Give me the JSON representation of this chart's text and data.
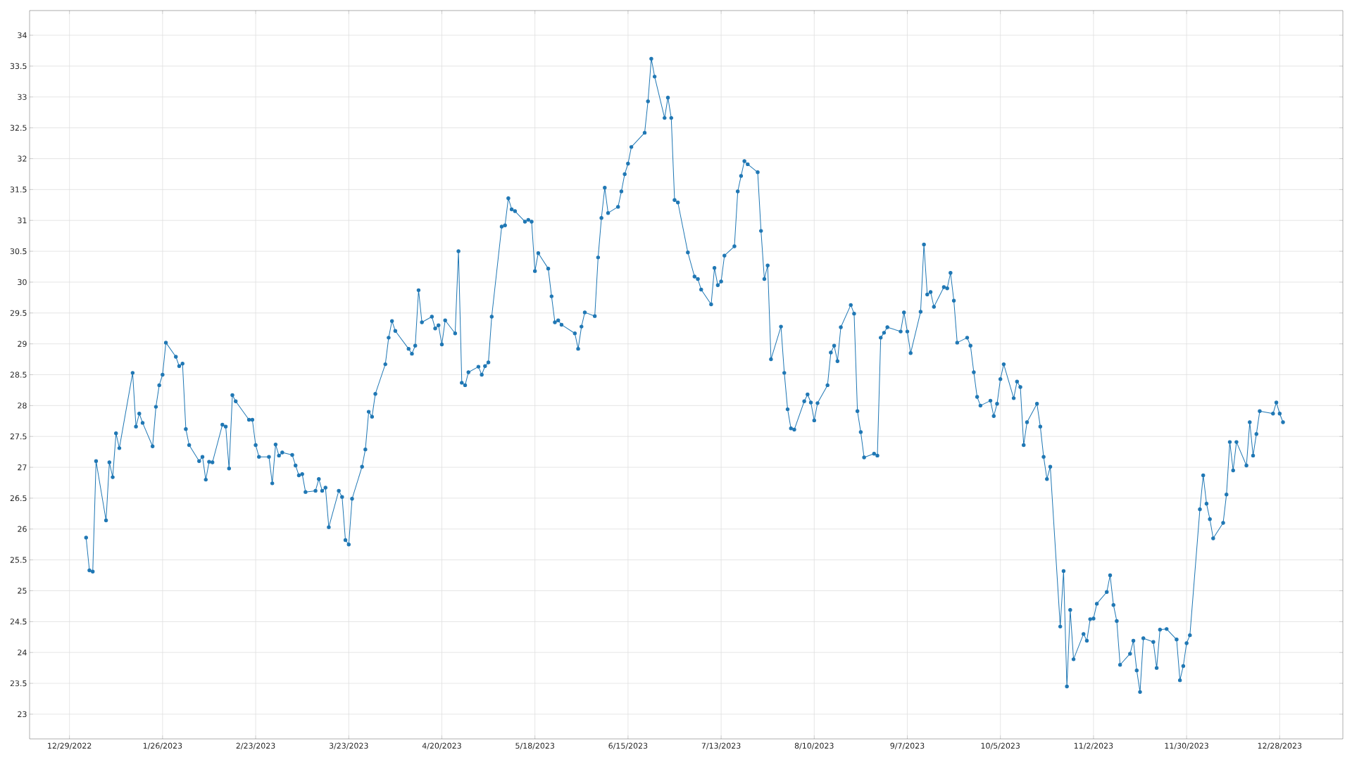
{
  "chart_data": {
    "type": "line",
    "grid": true,
    "marker": "circle",
    "line_style": "solid",
    "xlim": [
      "2022-12-17",
      "2024-01-16"
    ],
    "ylim": [
      22.6,
      34.4
    ],
    "xticks": [
      {
        "value": "2022-12-29",
        "label": "12/29/2022"
      },
      {
        "value": "2023-01-26",
        "label": "1/26/2023"
      },
      {
        "value": "2023-02-23",
        "label": "2/23/2023"
      },
      {
        "value": "2023-03-23",
        "label": "3/23/2023"
      },
      {
        "value": "2023-04-20",
        "label": "4/20/2023"
      },
      {
        "value": "2023-05-18",
        "label": "5/18/2023"
      },
      {
        "value": "2023-06-15",
        "label": "6/15/2023"
      },
      {
        "value": "2023-07-13",
        "label": "7/13/2023"
      },
      {
        "value": "2023-08-10",
        "label": "8/10/2023"
      },
      {
        "value": "2023-09-07",
        "label": "9/7/2023"
      },
      {
        "value": "2023-10-05",
        "label": "10/5/2023"
      },
      {
        "value": "2023-11-02",
        "label": "11/2/2023"
      },
      {
        "value": "2023-11-30",
        "label": "11/30/2023"
      },
      {
        "value": "2023-12-28",
        "label": "12/28/2023"
      }
    ],
    "yticks": [
      23,
      23.5,
      24,
      24.5,
      25,
      25.5,
      26,
      26.5,
      27,
      27.5,
      28,
      28.5,
      29,
      29.5,
      30,
      30.5,
      31,
      31.5,
      32,
      32.5,
      33,
      33.5,
      34
    ],
    "series": [
      {
        "color": "#1f77b4",
        "x": [
          "2023-01-03",
          "2023-01-04",
          "2023-01-05",
          "2023-01-06",
          "2023-01-09",
          "2023-01-10",
          "2023-01-11",
          "2023-01-12",
          "2023-01-13",
          "2023-01-17",
          "2023-01-18",
          "2023-01-19",
          "2023-01-20",
          "2023-01-23",
          "2023-01-24",
          "2023-01-25",
          "2023-01-26",
          "2023-01-27",
          "2023-01-30",
          "2023-01-31",
          "2023-02-01",
          "2023-02-02",
          "2023-02-03",
          "2023-02-06",
          "2023-02-07",
          "2023-02-08",
          "2023-02-09",
          "2023-02-10",
          "2023-02-13",
          "2023-02-14",
          "2023-02-15",
          "2023-02-16",
          "2023-02-17",
          "2023-02-21",
          "2023-02-22",
          "2023-02-23",
          "2023-02-24",
          "2023-02-27",
          "2023-02-28",
          "2023-03-01",
          "2023-03-02",
          "2023-03-03",
          "2023-03-06",
          "2023-03-07",
          "2023-03-08",
          "2023-03-09",
          "2023-03-10",
          "2023-03-13",
          "2023-03-14",
          "2023-03-15",
          "2023-03-16",
          "2023-03-17",
          "2023-03-20",
          "2023-03-21",
          "2023-03-22",
          "2023-03-23",
          "2023-03-24",
          "2023-03-27",
          "2023-03-28",
          "2023-03-29",
          "2023-03-30",
          "2023-03-31",
          "2023-04-03",
          "2023-04-04",
          "2023-04-05",
          "2023-04-06",
          "2023-04-10",
          "2023-04-11",
          "2023-04-12",
          "2023-04-13",
          "2023-04-14",
          "2023-04-17",
          "2023-04-18",
          "2023-04-19",
          "2023-04-20",
          "2023-04-21",
          "2023-04-24",
          "2023-04-25",
          "2023-04-26",
          "2023-04-27",
          "2023-04-28",
          "2023-05-01",
          "2023-05-02",
          "2023-05-03",
          "2023-05-04",
          "2023-05-05",
          "2023-05-08",
          "2023-05-09",
          "2023-05-10",
          "2023-05-11",
          "2023-05-12",
          "2023-05-15",
          "2023-05-16",
          "2023-05-17",
          "2023-05-18",
          "2023-05-19",
          "2023-05-22",
          "2023-05-23",
          "2023-05-24",
          "2023-05-25",
          "2023-05-26",
          "2023-05-30",
          "2023-05-31",
          "2023-06-01",
          "2023-06-02",
          "2023-06-05",
          "2023-06-06",
          "2023-06-07",
          "2023-06-08",
          "2023-06-09",
          "2023-06-12",
          "2023-06-13",
          "2023-06-14",
          "2023-06-15",
          "2023-06-16",
          "2023-06-20",
          "2023-06-21",
          "2023-06-22",
          "2023-06-23",
          "2023-06-26",
          "2023-06-27",
          "2023-06-28",
          "2023-06-29",
          "2023-06-30",
          "2023-07-03",
          "2023-07-05",
          "2023-07-06",
          "2023-07-07",
          "2023-07-10",
          "2023-07-11",
          "2023-07-12",
          "2023-07-13",
          "2023-07-14",
          "2023-07-17",
          "2023-07-18",
          "2023-07-19",
          "2023-07-20",
          "2023-07-21",
          "2023-07-24",
          "2023-07-25",
          "2023-07-26",
          "2023-07-27",
          "2023-07-28",
          "2023-07-31",
          "2023-08-01",
          "2023-08-02",
          "2023-08-03",
          "2023-08-04",
          "2023-08-07",
          "2023-08-08",
          "2023-08-09",
          "2023-08-10",
          "2023-08-11",
          "2023-08-14",
          "2023-08-15",
          "2023-08-16",
          "2023-08-17",
          "2023-08-18",
          "2023-08-21",
          "2023-08-22",
          "2023-08-23",
          "2023-08-24",
          "2023-08-25",
          "2023-08-28",
          "2023-08-29",
          "2023-08-30",
          "2023-08-31",
          "2023-09-01",
          "2023-09-05",
          "2023-09-06",
          "2023-09-07",
          "2023-09-08",
          "2023-09-11",
          "2023-09-12",
          "2023-09-13",
          "2023-09-14",
          "2023-09-15",
          "2023-09-18",
          "2023-09-19",
          "2023-09-20",
          "2023-09-21",
          "2023-09-22",
          "2023-09-25",
          "2023-09-26",
          "2023-09-27",
          "2023-09-28",
          "2023-09-29",
          "2023-10-02",
          "2023-10-03",
          "2023-10-04",
          "2023-10-05",
          "2023-10-06",
          "2023-10-09",
          "2023-10-10",
          "2023-10-11",
          "2023-10-12",
          "2023-10-13",
          "2023-10-16",
          "2023-10-17",
          "2023-10-18",
          "2023-10-19",
          "2023-10-20",
          "2023-10-23",
          "2023-10-24",
          "2023-10-25",
          "2023-10-26",
          "2023-10-27",
          "2023-10-30",
          "2023-10-31",
          "2023-11-01",
          "2023-11-02",
          "2023-11-03",
          "2023-11-06",
          "2023-11-07",
          "2023-11-08",
          "2023-11-09",
          "2023-11-10",
          "2023-11-13",
          "2023-11-14",
          "2023-11-15",
          "2023-11-16",
          "2023-11-17",
          "2023-11-20",
          "2023-11-21",
          "2023-11-22",
          "2023-11-24",
          "2023-11-27",
          "2023-11-28",
          "2023-11-29",
          "2023-11-30",
          "2023-12-01",
          "2023-12-04",
          "2023-12-05",
          "2023-12-06",
          "2023-12-07",
          "2023-12-08",
          "2023-12-11",
          "2023-12-12",
          "2023-12-13",
          "2023-12-14",
          "2023-12-15",
          "2023-12-18",
          "2023-12-19",
          "2023-12-20",
          "2023-12-21",
          "2023-12-22",
          "2023-12-26",
          "2023-12-27",
          "2023-12-28",
          "2023-12-29"
        ],
        "values": [
          25.86,
          25.33,
          25.31,
          27.1,
          26.14,
          27.08,
          26.84,
          27.55,
          27.31,
          28.53,
          27.66,
          27.87,
          27.72,
          27.34,
          27.98,
          28.33,
          28.5,
          29.02,
          28.79,
          28.64,
          28.68,
          27.62,
          27.36,
          27.1,
          27.17,
          26.8,
          27.09,
          27.08,
          27.69,
          27.66,
          26.98,
          28.17,
          28.07,
          27.77,
          27.77,
          27.36,
          27.17,
          27.17,
          26.74,
          27.37,
          27.19,
          27.24,
          27.2,
          27.03,
          26.87,
          26.89,
          26.6,
          26.62,
          26.81,
          26.62,
          26.67,
          26.03,
          26.62,
          26.52,
          25.82,
          25.75,
          26.49,
          27.01,
          27.29,
          27.9,
          27.82,
          28.19,
          28.67,
          29.1,
          29.37,
          29.21,
          28.92,
          28.84,
          28.97,
          29.87,
          29.35,
          29.44,
          29.25,
          29.3,
          28.99,
          29.38,
          29.17,
          30.5,
          28.37,
          28.33,
          28.54,
          28.63,
          28.5,
          28.64,
          28.7,
          29.44,
          30.9,
          30.92,
          31.36,
          31.18,
          31.15,
          30.98,
          31.01,
          30.98,
          30.18,
          30.47,
          30.22,
          29.77,
          29.35,
          29.38,
          29.31,
          29.17,
          28.92,
          29.28,
          29.51,
          29.45,
          30.4,
          31.04,
          31.53,
          31.12,
          31.22,
          31.47,
          31.75,
          31.92,
          32.19,
          32.42,
          32.93,
          33.62,
          33.33,
          32.66,
          32.99,
          32.66,
          31.33,
          31.29,
          30.48,
          30.09,
          30.05,
          29.88,
          29.64,
          30.23,
          29.95,
          30.01,
          30.43,
          30.58,
          31.47,
          31.72,
          31.96,
          31.91,
          31.78,
          30.83,
          30.05,
          30.27,
          28.75,
          29.28,
          28.53,
          27.94,
          27.63,
          27.61,
          28.07,
          28.18,
          28.05,
          27.76,
          28.04,
          28.33,
          28.86,
          28.97,
          28.72,
          29.27,
          29.63,
          29.49,
          27.91,
          27.57,
          27.16,
          27.22,
          27.19,
          29.1,
          29.18,
          29.27,
          29.2,
          29.51,
          29.2,
          28.85,
          29.52,
          30.61,
          29.8,
          29.84,
          29.6,
          29.92,
          29.9,
          30.15,
          29.7,
          29.02,
          29.1,
          28.97,
          28.54,
          28.14,
          28.0,
          28.08,
          27.83,
          28.03,
          28.43,
          28.67,
          28.12,
          28.39,
          28.3,
          27.36,
          27.73,
          28.03,
          27.66,
          27.17,
          26.81,
          27.01,
          24.42,
          25.32,
          23.45,
          24.69,
          23.89,
          24.3,
          24.19,
          24.54,
          24.55,
          24.79,
          24.98,
          25.25,
          24.77,
          24.51,
          23.8,
          23.98,
          24.19,
          23.71,
          23.36,
          24.23,
          24.17,
          23.75,
          24.37,
          24.38,
          24.21,
          23.55,
          23.78,
          24.15,
          24.28,
          26.32,
          26.87,
          26.41,
          26.16,
          25.85,
          26.1,
          26.56,
          27.41,
          26.95,
          27.41,
          27.03,
          27.73,
          27.19,
          27.54,
          27.91,
          27.87,
          28.05,
          27.87,
          27.73
        ]
      }
    ]
  }
}
